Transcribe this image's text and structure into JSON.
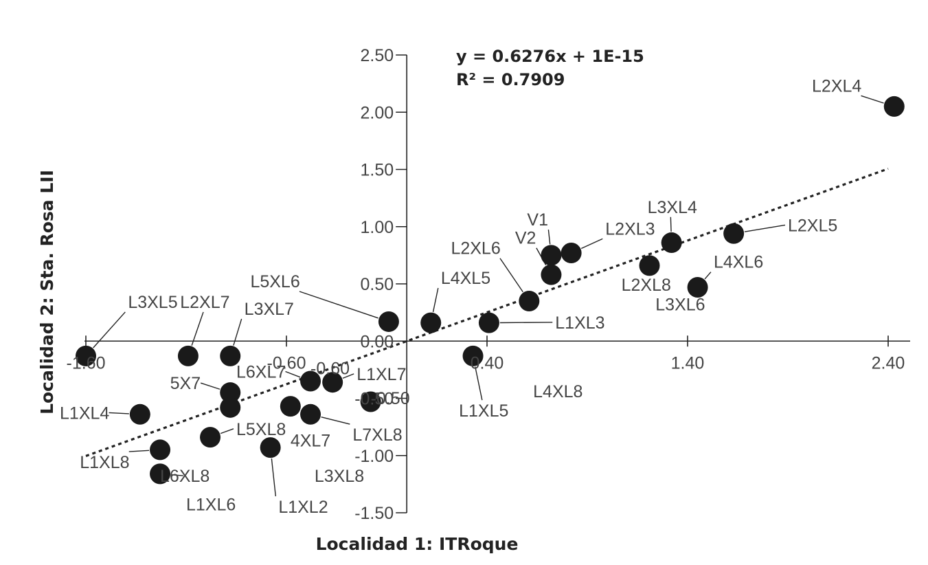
{
  "chart_data": {
    "type": "scatter",
    "xlabel": "Localidad 1: ITRoque",
    "ylabel": "Localidad 2: Sta. Rosa LII",
    "xlim": [
      -1.6,
      2.4
    ],
    "ylim": [
      -1.5,
      2.5
    ],
    "x_ticks": [
      "-1.60",
      "-0.60",
      "0.40",
      "1.40",
      "2.40"
    ],
    "x_tick_values": [
      -1.6,
      -0.6,
      0.4,
      1.4,
      2.4
    ],
    "y_ticks": [
      "2.50",
      "2.00",
      "1.50",
      "1.00",
      "0.50",
      "0.00",
      "-0.50",
      "-1.00",
      "-1.50"
    ],
    "y_tick_values": [
      2.5,
      2.0,
      1.5,
      1.0,
      0.5,
      0.0,
      -0.5,
      -1.0,
      -1.5
    ],
    "trendline": {
      "slope": 0.6276,
      "intercept": 0,
      "style": "dotted",
      "x_range": [
        -1.6,
        2.4
      ]
    },
    "equation_line1": "y = 0.6276x + 1E-15",
    "equation_line2": "R² = 0.7909",
    "marker_color": "#1a1a1a",
    "points": [
      {
        "label": "L2XL4",
        "x": 2.43,
        "y": 2.05
      },
      {
        "label": "L3XL4",
        "x": 1.32,
        "y": 0.86
      },
      {
        "label": "L2XL5",
        "x": 1.63,
        "y": 0.94
      },
      {
        "label": "L2XL3",
        "x": 0.82,
        "y": 0.77
      },
      {
        "label": "V1",
        "x": 0.72,
        "y": 0.75
      },
      {
        "label": "V2",
        "x": 0.72,
        "y": 0.58
      },
      {
        "label": "L2XL8",
        "x": 1.21,
        "y": 0.66
      },
      {
        "label": "L4XL6",
        "x": 1.45,
        "y": 0.47
      },
      {
        "label": "L2XL6",
        "x": 0.61,
        "y": 0.35
      },
      {
        "label": "L4XL5",
        "x": 0.12,
        "y": 0.16
      },
      {
        "label": "L5XL6",
        "x": -0.09,
        "y": 0.17
      },
      {
        "label": "L1XL3",
        "x": 0.41,
        "y": 0.16
      },
      {
        "label": "L1XL5",
        "x": 0.33,
        "y": -0.13
      },
      {
        "label": "L3XL5",
        "x": -1.6,
        "y": -0.13
      },
      {
        "label": "L2XL7",
        "x": -1.09,
        "y": -0.13
      },
      {
        "label": "L3XL7",
        "x": -0.88,
        "y": -0.13
      },
      {
        "label": "L6XL7",
        "x": -0.48,
        "y": -0.35
      },
      {
        "label": "L1XL7",
        "x": -0.37,
        "y": -0.36
      },
      {
        "label": "5X7",
        "x": -0.88,
        "y": -0.45
      },
      {
        "label": "L1XL4",
        "x": -1.33,
        "y": -0.64
      },
      {
        "label": "",
        "x": -0.88,
        "y": -0.58
      },
      {
        "label": "",
        "x": -0.58,
        "y": -0.57
      },
      {
        "label": "L7XL8",
        "x": -0.48,
        "y": -0.64
      },
      {
        "label": "",
        "x": -0.18,
        "y": -0.53
      },
      {
        "label": "L5XL8",
        "x": -0.98,
        "y": -0.84
      },
      {
        "label": "L1XL2",
        "x": -0.68,
        "y": -0.93
      },
      {
        "label": "L1XL8",
        "x": -1.23,
        "y": -0.95
      },
      {
        "label": "L6XL8",
        "x": -1.23,
        "y": -1.16
      }
    ],
    "labels": [
      {
        "text": "L2XL4",
        "lx": 2.02,
        "ly": 2.18
      },
      {
        "text": "L3XL4",
        "lx": 1.2,
        "ly": 1.12
      },
      {
        "text": "L2XL5",
        "lx": 1.9,
        "ly": 0.96
      },
      {
        "text": "L2XL3",
        "lx": 0.99,
        "ly": 0.93
      },
      {
        "text": "V1",
        "lx": 0.6,
        "ly": 1.01
      },
      {
        "text": "V2",
        "lx": 0.54,
        "ly": 0.85
      },
      {
        "text": "L2XL6",
        "lx": 0.22,
        "ly": 0.76
      },
      {
        "text": "L2XL8",
        "lx": 1.07,
        "ly": 0.44
      },
      {
        "text": "L4XL6",
        "lx": 1.53,
        "ly": 0.64
      },
      {
        "text": "L3XL6",
        "lx": 1.24,
        "ly": 0.27
      },
      {
        "text": "L4XL5",
        "lx": 0.17,
        "ly": 0.5
      },
      {
        "text": "L5XL6",
        "lx": -0.78,
        "ly": 0.47
      },
      {
        "text": "L1XL3",
        "lx": 0.74,
        "ly": 0.11
      },
      {
        "text": "L1XL5",
        "lx": 0.26,
        "ly": -0.66
      },
      {
        "text": "L4XL8",
        "lx": 0.63,
        "ly": -0.49
      },
      {
        "text": "L3XL5",
        "lx": -1.39,
        "ly": 0.29
      },
      {
        "text": "L2XL7",
        "lx": -1.13,
        "ly": 0.29
      },
      {
        "text": "L3XL7",
        "lx": -0.81,
        "ly": 0.23
      },
      {
        "text": "L6XL7",
        "lx": -0.85,
        "ly": -0.32
      },
      {
        "text": "-0.60",
        "lx": -0.48,
        "ly": -0.29
      },
      {
        "text": "L1XL7",
        "lx": -0.25,
        "ly": -0.34
      },
      {
        "text": "5X7",
        "lx": -1.18,
        "ly": -0.42
      },
      {
        "text": "L1XL4",
        "lx": -1.73,
        "ly": -0.68
      },
      {
        "text": "L5XL8",
        "lx": -0.85,
        "ly": -0.82
      },
      {
        "text": "4XL7",
        "lx": -0.58,
        "ly": -0.92
      },
      {
        "text": "L7XL8",
        "lx": -0.27,
        "ly": -0.87
      },
      {
        "text": "-0.50",
        "lx": -0.18,
        "ly": -0.55
      },
      {
        "text": "L1XL8",
        "lx": -1.63,
        "ly": -1.11
      },
      {
        "text": "L6XL8",
        "lx": -1.23,
        "ly": -1.23
      },
      {
        "text": "L1XL6",
        "lx": -1.1,
        "ly": -1.48
      },
      {
        "text": "L3XL8",
        "lx": -0.46,
        "ly": -1.23
      },
      {
        "text": "L1XL2",
        "lx": -0.64,
        "ly": -1.5
      }
    ]
  }
}
